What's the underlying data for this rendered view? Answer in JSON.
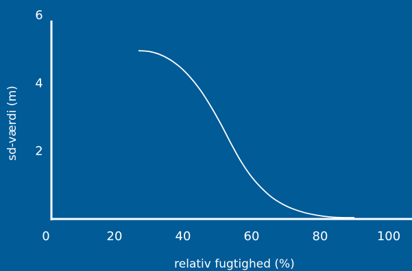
{
  "colors": {
    "background": "#005b97",
    "foreground": "#ffffff"
  },
  "chart_data": {
    "type": "line",
    "title": "",
    "xlabel": "relativ fugtighed (%)",
    "ylabel": "sd-værdi (m)",
    "xlim": [
      0,
      100
    ],
    "ylim": [
      0,
      6
    ],
    "x_ticks": [
      0,
      20,
      40,
      60,
      80,
      100
    ],
    "y_ticks": [
      2,
      4,
      6
    ],
    "x_tick_labels": [
      "0",
      "20",
      "40",
      "60",
      "80",
      "100"
    ],
    "y_tick_labels": [
      "2",
      "4",
      "6"
    ],
    "grid": false,
    "legend": "none",
    "series": [
      {
        "x": [
          27,
          30,
          33,
          36,
          39,
          42,
          45,
          48,
          51,
          54,
          57,
          60,
          63,
          66,
          69,
          72,
          75,
          78,
          81,
          84,
          87,
          90
        ],
        "y": [
          4.95,
          4.93,
          4.85,
          4.7,
          4.48,
          4.18,
          3.8,
          3.33,
          2.8,
          2.22,
          1.68,
          1.24,
          0.9,
          0.63,
          0.44,
          0.3,
          0.2,
          0.13,
          0.08,
          0.05,
          0.04,
          0.04
        ]
      }
    ]
  }
}
